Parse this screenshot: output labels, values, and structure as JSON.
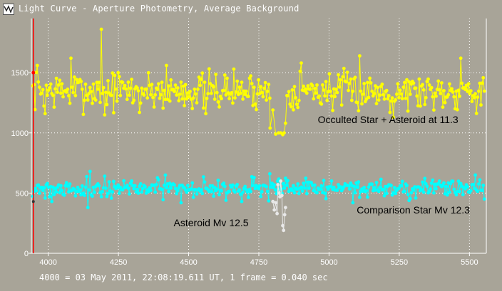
{
  "window": {
    "title": "Light Curve - Aperture Photometry, Average Background",
    "icon": "light-curve-app-icon"
  },
  "footer": {
    "caption": "4000 = 03 May 2011, 22:08:19.611 UT, 1 frame = 0.040 sec"
  },
  "chart_data": {
    "type": "line",
    "title": "",
    "xlabel": "",
    "ylabel": "",
    "xlim": [
      3940,
      5560
    ],
    "ylim": [
      0,
      1950
    ],
    "x_ticks": [
      4000,
      4250,
      4500,
      4750,
      5000,
      5250,
      5500
    ],
    "y_ticks": [
      0,
      500,
      1000,
      1500
    ],
    "grid": true,
    "legend": "none",
    "colors": {
      "plot_background": "#a8a498",
      "grid": "#ffffff",
      "cursor": "#ff0000",
      "target_series": "#ffff00",
      "comparison_series": "#00ffff",
      "asteroid_series": "#e8e8e8"
    },
    "cursor_x": 3947,
    "annotations": [
      {
        "text": "Occulted Star + Asteroid at 11.3",
        "x": 5210,
        "y": 1080
      },
      {
        "text": "Comparison Star Mv 12.3",
        "x": 5300,
        "y": 330
      },
      {
        "text": "Asteroid Mv 12.5",
        "x": 4580,
        "y": 225
      }
    ],
    "series": [
      {
        "name": "Occulted Star + Asteroid at 11.3",
        "color": "#ffff00",
        "x_start": 3945,
        "x_end": 5555,
        "base": 1350,
        "noise": 110,
        "seed": 7,
        "spikes": [
          [
            3960,
            1560
          ],
          [
            4080,
            1620
          ],
          [
            4190,
            1860
          ],
          [
            4250,
            1500
          ],
          [
            4420,
            1560
          ],
          [
            4660,
            1530
          ],
          [
            4900,
            1580
          ],
          [
            5110,
            1640
          ],
          [
            5470,
            1620
          ]
        ],
        "dips": [
          [
            3990,
            1160
          ],
          [
            4200,
            1150
          ],
          [
            4560,
            1160
          ],
          [
            5230,
            1130
          ],
          [
            4325,
            1170
          ]
        ],
        "event": [
          [
            4790,
            1040
          ],
          [
            4800,
            1190
          ],
          [
            4810,
            990
          ],
          [
            4820,
            1000
          ],
          [
            4828,
            1000
          ],
          [
            4835,
            985
          ],
          [
            4840,
            1000
          ],
          [
            4845,
            1080
          ],
          [
            4850,
            1310
          ]
        ]
      },
      {
        "name": "Comparison Star Mv 12.3",
        "color": "#00ffff",
        "x_start": 3945,
        "x_end": 5555,
        "base": 540,
        "noise": 55,
        "seed": 21,
        "spikes": [
          [
            4150,
            680
          ],
          [
            4200,
            640
          ],
          [
            4790,
            660
          ],
          [
            5520,
            650
          ]
        ],
        "dips": [
          [
            4015,
            430
          ],
          [
            4140,
            380
          ],
          [
            4475,
            420
          ],
          [
            4690,
            430
          ],
          [
            5085,
            420
          ]
        ],
        "event": []
      },
      {
        "name": "Asteroid Mv 12.5",
        "color": "#e8e8e8",
        "x_start": 4800,
        "x_end": 4845,
        "points": [
          [
            4800,
            430
          ],
          [
            4805,
            360
          ],
          [
            4810,
            420
          ],
          [
            4815,
            330
          ],
          [
            4818,
            570
          ],
          [
            4822,
            500
          ],
          [
            4825,
            470
          ],
          [
            4828,
            600
          ],
          [
            4832,
            480
          ],
          [
            4835,
            230
          ],
          [
            4838,
            190
          ],
          [
            4842,
            320
          ],
          [
            4845,
            380
          ]
        ]
      }
    ]
  }
}
